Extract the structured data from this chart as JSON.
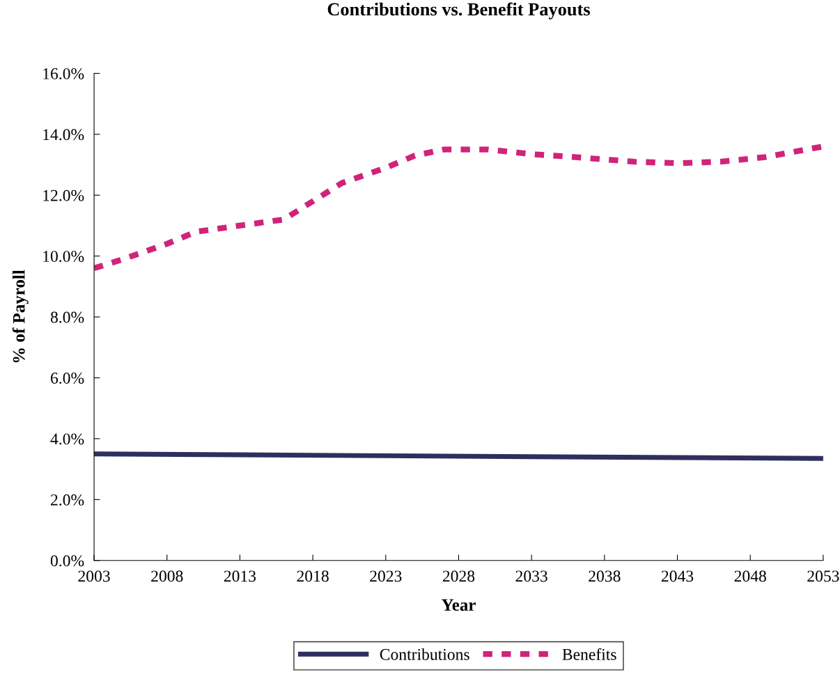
{
  "chart_data": {
    "type": "line",
    "title": "Contributions vs. Benefit Payouts",
    "xlabel": "Year",
    "ylabel": "% of Payroll",
    "xlim": [
      2003,
      2053
    ],
    "xticks": [
      2003,
      2008,
      2013,
      2018,
      2023,
      2028,
      2033,
      2038,
      2043,
      2048,
      2053
    ],
    "ylim": [
      0,
      16
    ],
    "yticks": [
      {
        "value": 0,
        "label": "0.0%"
      },
      {
        "value": 2,
        "label": "2.0%"
      },
      {
        "value": 4,
        "label": "4.0%"
      },
      {
        "value": 6,
        "label": "6.0%"
      },
      {
        "value": 8,
        "label": "8.0%"
      },
      {
        "value": 10,
        "label": "10.0%"
      },
      {
        "value": 12,
        "label": "12.0%"
      },
      {
        "value": 14,
        "label": "14.0%"
      },
      {
        "value": 16,
        "label": "16.0%"
      }
    ],
    "grid": false,
    "legend": "bottom",
    "series": [
      {
        "name": "Contributions",
        "color": "#2e2f5e",
        "line_style": "solid",
        "x": [
          2003,
          2013,
          2023,
          2033,
          2043,
          2053
        ],
        "values": [
          3.5,
          3.47,
          3.44,
          3.41,
          3.38,
          3.35
        ]
      },
      {
        "name": "Benefits",
        "color": "#d0237a",
        "line_style": "dashed",
        "x": [
          2003,
          2005,
          2008,
          2010,
          2013,
          2016,
          2018,
          2020,
          2023,
          2025,
          2027,
          2030,
          2033,
          2036,
          2040,
          2043,
          2046,
          2049,
          2053
        ],
        "values": [
          9.6,
          9.9,
          10.4,
          10.8,
          11.0,
          11.2,
          11.8,
          12.4,
          12.9,
          13.3,
          13.5,
          13.5,
          13.35,
          13.25,
          13.1,
          13.05,
          13.1,
          13.25,
          13.6
        ]
      }
    ]
  }
}
